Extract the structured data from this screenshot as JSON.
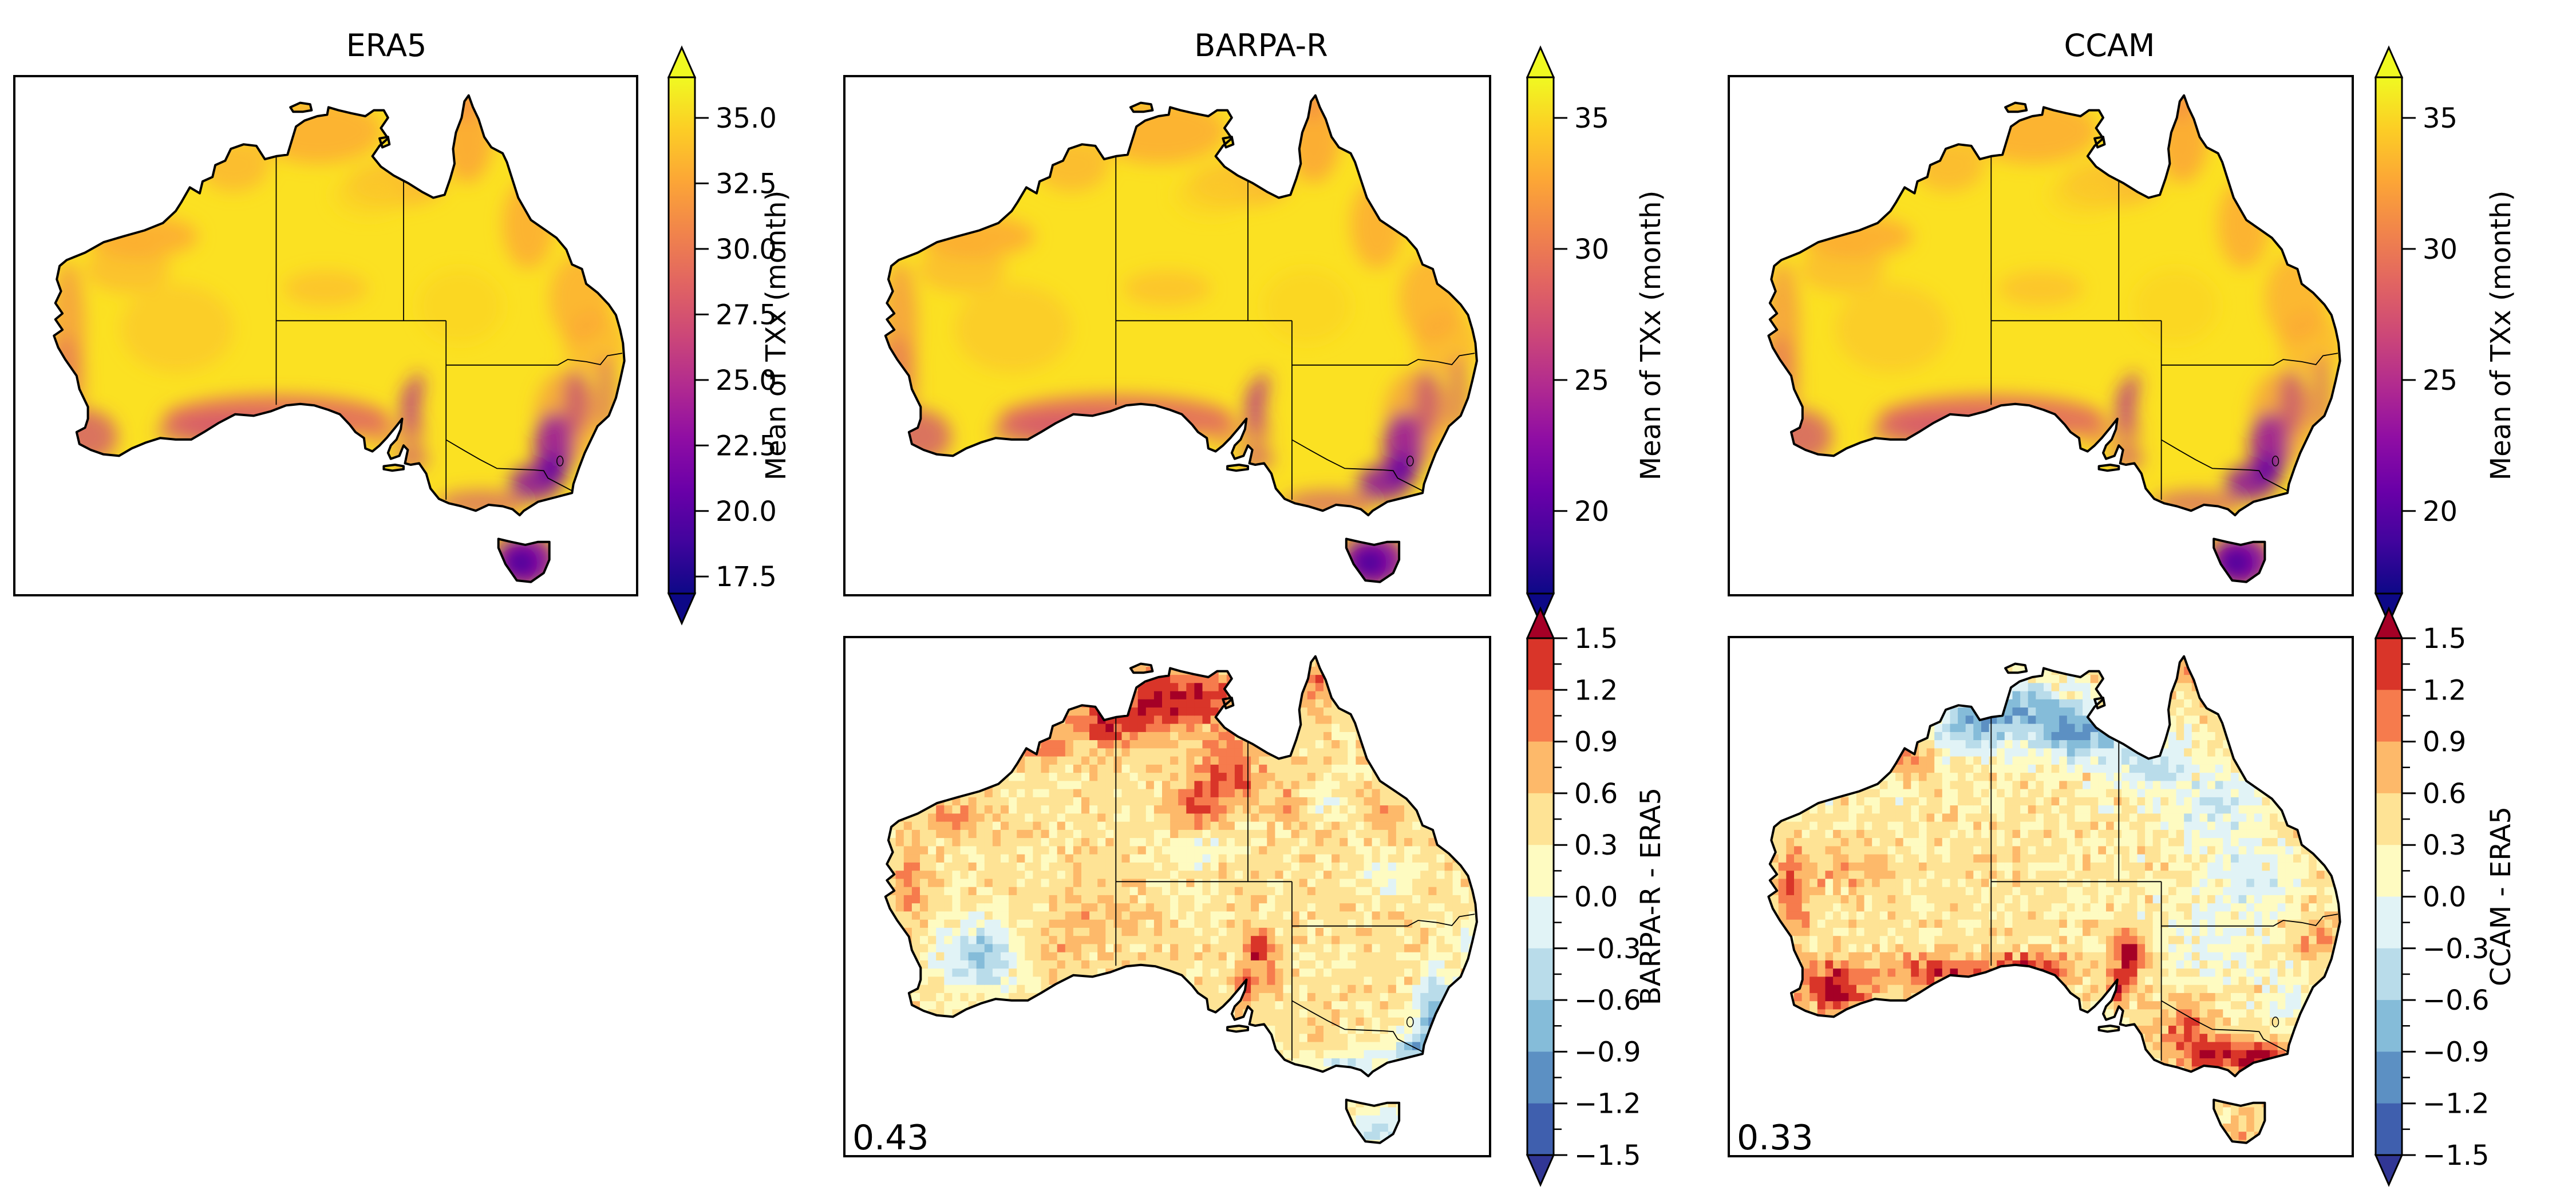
{
  "figure": {
    "background": "#ffffff",
    "text_color": "#000000",
    "layout": "2 rows x 3 columns of Australia maps; bottom-left cell empty"
  },
  "panels": [
    {
      "title": "ERA5"
    },
    {
      "title": "BARPA-R"
    },
    {
      "title": "CCAM"
    },
    {
      "corner_value": "0.43"
    },
    {
      "corner_value": "0.33"
    }
  ],
  "colorbars": [
    {
      "label": "Mean of TXx (month)",
      "colormap": "plasma",
      "extend": "both",
      "ticks": [
        "35.0",
        "32.5",
        "30.0",
        "27.5",
        "25.0",
        "22.5",
        "20.0",
        "17.5"
      ]
    },
    {
      "label": "Mean of TXx (month)",
      "colormap": "plasma",
      "extend": "both",
      "ticks": [
        "35",
        "30",
        "25",
        "20"
      ]
    },
    {
      "label": "Mean of TXx (month)",
      "colormap": "plasma",
      "extend": "both",
      "ticks": [
        "35",
        "30",
        "25",
        "20"
      ]
    },
    {
      "label": "BARPA-R - ERA5",
      "colormap": "RdYlBu_r",
      "extend": "both",
      "ticks": [
        "1.5",
        "1.2",
        "0.9",
        "0.6",
        "0.3",
        "0.0",
        "−0.3",
        "−0.6",
        "−0.9",
        "−1.2",
        "−1.5"
      ]
    },
    {
      "label": "CCAM - ERA5",
      "colormap": "RdYlBu_r",
      "extend": "both",
      "ticks": [
        "1.5",
        "1.2",
        "0.9",
        "0.6",
        "0.3",
        "0.0",
        "−0.3",
        "−0.6",
        "−0.9",
        "−1.2",
        "−1.5"
      ]
    }
  ],
  "colors": {
    "plasma_stops": [
      "#f0f921",
      "#fcce25",
      "#fca636",
      "#f1844b",
      "#e16462",
      "#cc4778",
      "#b12a90",
      "#8f0da4",
      "#6a00a8",
      "#41049d",
      "#0d0887"
    ],
    "diff_bins_low_to_high": [
      "#3f5fae",
      "#5c90c3",
      "#85bcd9",
      "#b9dcea",
      "#e1f3f6",
      "#fefbc1",
      "#fee395",
      "#fdb96a",
      "#f67b4d",
      "#d93529"
    ],
    "diff_arrow_low": "#313695",
    "diff_arrow_high": "#a50026",
    "coastline": "#000000"
  },
  "chart_data": [
    {
      "type": "heatmap",
      "title": "ERA5",
      "region": "Australia",
      "variable": "Mean of TXx (month)",
      "colormap": "plasma",
      "extend": "both",
      "colorbar_ticks": [
        35.0,
        32.5,
        30.0,
        27.5,
        25.0,
        22.5,
        20.0,
        17.5
      ],
      "pattern": "Interior bright yellow (~35-36); orange along west/north/east coasts; pink-magenta southern coastal rim; purple (17-22) over southeast highlands and Tasmania; state borders drawn"
    },
    {
      "type": "heatmap",
      "title": "BARPA-R",
      "region": "Australia",
      "variable": "Mean of TXx (month)",
      "colormap": "plasma",
      "extend": "both",
      "colorbar_ticks": [
        35,
        30,
        25,
        20
      ],
      "pattern": "Nearly identical spatial pattern to ERA5 panel"
    },
    {
      "type": "heatmap",
      "title": "CCAM",
      "region": "Australia",
      "variable": "Mean of TXx (month)",
      "colormap": "plasma",
      "extend": "both",
      "colorbar_ticks": [
        35,
        30,
        25,
        20
      ],
      "pattern": "Nearly identical spatial pattern to ERA5 panel"
    },
    {
      "type": "heatmap",
      "title": "BARPA-R - ERA5",
      "region": "Australia",
      "variable": "TXx difference",
      "colormap": "RdYlBu_r",
      "extend": "both",
      "colorbar_ticks": [
        1.5,
        1.2,
        0.9,
        0.6,
        0.3,
        0.0,
        -0.3,
        -0.6,
        -0.9,
        -1.2,
        -1.5
      ],
      "corner_value": 0.43,
      "pattern": "Warm bias over most of the continent, strongest (>1.5) across the Top End, Kimberley and central South Australia; cool bias over southwest WA interior, NSW coastal ranges, southern Victoria and Tasmania"
    },
    {
      "type": "heatmap",
      "title": "CCAM - ERA5",
      "region": "Australia",
      "variable": "TXx difference",
      "colormap": "RdYlBu_r",
      "extend": "both",
      "colorbar_ticks": [
        1.5,
        1.2,
        0.9,
        0.6,
        0.3,
        0.0,
        -0.3,
        -0.6,
        -0.9,
        -1.2,
        -1.5
      ],
      "corner_value": 0.33,
      "pattern": "Cool bias (< -1) across northern Australia; warm bias (>1.5) along the southern coast, west coast, Flinders Ranges and Victoria; mixed along east coast"
    }
  ]
}
